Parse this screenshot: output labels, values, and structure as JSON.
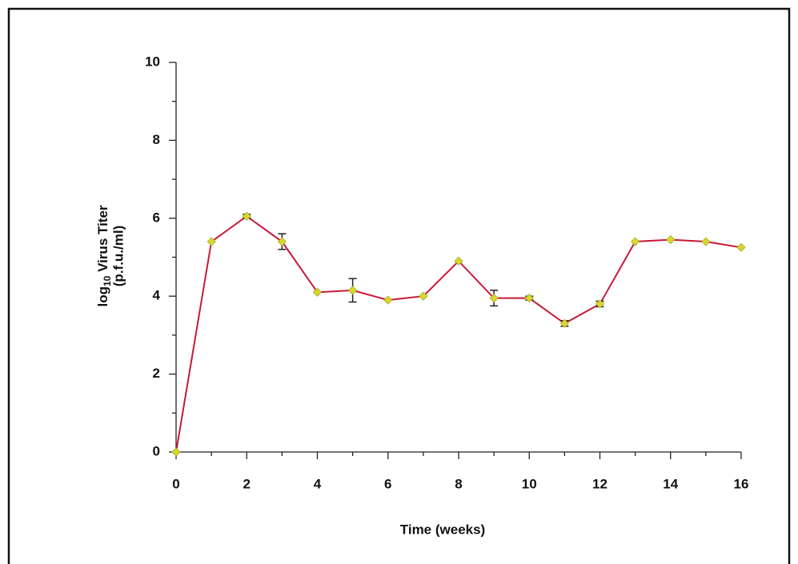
{
  "chart_data": {
    "type": "line",
    "xlabel": "Time (weeks)",
    "ylabel": {
      "prefix": "log",
      "subscript": "10",
      "rest": " Virus Titer"
    },
    "ylabel2": "(p.f.u./ml)",
    "x": [
      0,
      1,
      2,
      3,
      4,
      5,
      6,
      7,
      8,
      9,
      10,
      11,
      12,
      13,
      14,
      15,
      16
    ],
    "series": [
      {
        "color": "#c8193a",
        "marker_color": "#d8d82c",
        "values": [
          0,
          5.4,
          6.05,
          5.4,
          4.1,
          4.15,
          3.9,
          4.0,
          4.9,
          3.95,
          3.95,
          3.3,
          3.8,
          5.4,
          5.45,
          5.4,
          5.25
        ],
        "errors": [
          null,
          null,
          0.05,
          0.2,
          null,
          0.3,
          null,
          null,
          null,
          0.2,
          0.05,
          0.07,
          0.07,
          null,
          null,
          null,
          null
        ]
      }
    ],
    "xlim": [
      0,
      16
    ],
    "xticks": [
      0,
      2,
      4,
      6,
      8,
      10,
      12,
      14,
      16
    ],
    "xminorticks": [
      1,
      3,
      5,
      7,
      9,
      11,
      13,
      15
    ],
    "ylim": [
      0,
      10
    ],
    "yticks": [
      0,
      2,
      4,
      6,
      8,
      10
    ],
    "yminorticks": [
      1,
      3,
      5,
      7,
      9
    ]
  }
}
